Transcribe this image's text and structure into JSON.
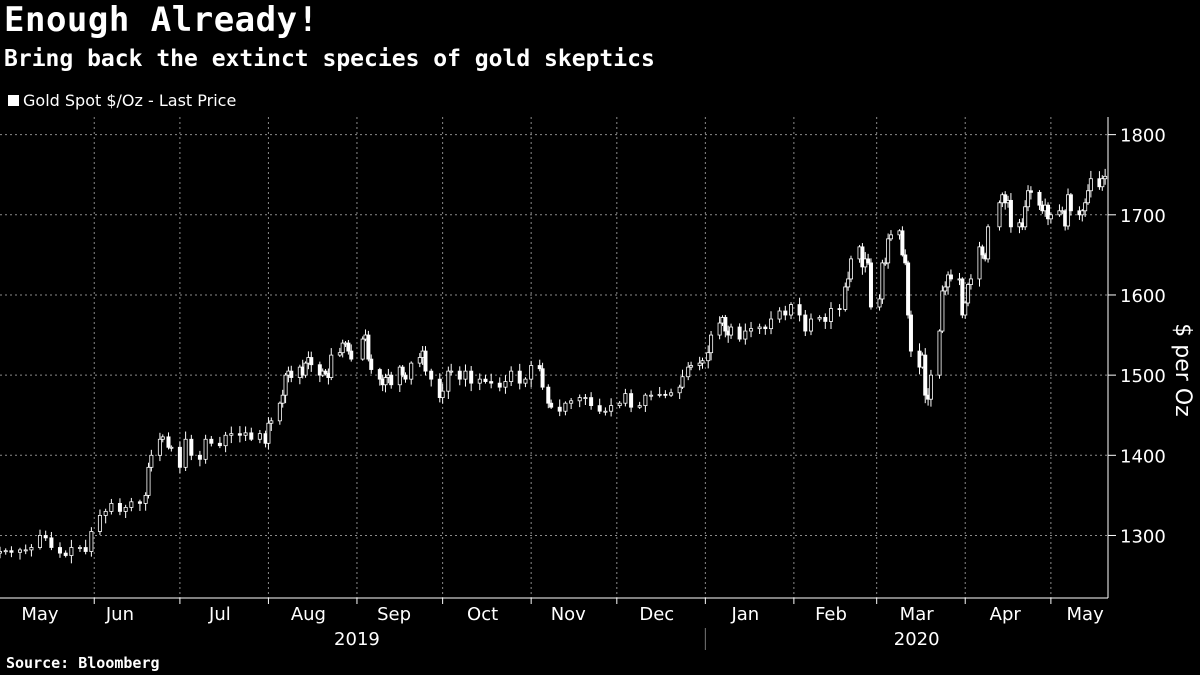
{
  "header": {
    "title": "Enough Already!",
    "subtitle": "Bring back the extinct species of gold skeptics"
  },
  "footer": {
    "source": "Source: Bloomberg"
  },
  "colors": {
    "background": "#000000",
    "series": "#ffffff",
    "grid": "#888888"
  },
  "chart_data": {
    "type": "candlestick",
    "series": [
      {
        "name": "Gold Spot $/Oz - Last Price"
      }
    ],
    "ylabel": "$ per Oz",
    "ylim": [
      1222,
      1822
    ],
    "yticks": [
      1300,
      1400,
      1500,
      1600,
      1700,
      1800
    ],
    "xlim": [
      "2019-04-29",
      "2020-05-21"
    ],
    "month_ticks": [
      {
        "label": "May",
        "date": "2019-05-13"
      },
      {
        "label": "Jun",
        "date": "2019-06-10"
      },
      {
        "label": "Jul",
        "date": "2019-07-15"
      },
      {
        "label": "Aug",
        "date": "2019-08-15"
      },
      {
        "label": "Sep",
        "date": "2019-09-14"
      },
      {
        "label": "Oct",
        "date": "2019-10-15"
      },
      {
        "label": "Nov",
        "date": "2019-11-14"
      },
      {
        "label": "Dec",
        "date": "2019-12-15"
      },
      {
        "label": "Jan",
        "date": "2020-01-15"
      },
      {
        "label": "Feb",
        "date": "2020-02-14"
      },
      {
        "label": "Mar",
        "date": "2020-03-15"
      },
      {
        "label": "Apr",
        "date": "2020-04-15"
      },
      {
        "label": "May",
        "date": "2020-05-13"
      }
    ],
    "month_boundaries": [
      "2019-06-01",
      "2019-07-01",
      "2019-08-01",
      "2019-09-01",
      "2019-10-01",
      "2019-11-01",
      "2019-12-01",
      "2020-01-01",
      "2020-02-01",
      "2020-03-01",
      "2020-04-01",
      "2020-05-01"
    ],
    "years": [
      {
        "label": "2019",
        "date": "2019-09-01"
      },
      {
        "label": "2020",
        "date": "2020-03-15"
      }
    ],
    "year_boundary": "2020-01-01",
    "grid": true,
    "closing_prices": [
      [
        "2019-04-29",
        1280
      ],
      [
        "2019-05-01",
        1281
      ],
      [
        "2019-05-03",
        1279
      ],
      [
        "2019-05-06",
        1282
      ],
      [
        "2019-05-08",
        1282
      ],
      [
        "2019-05-10",
        1285
      ],
      [
        "2019-05-13",
        1300
      ],
      [
        "2019-05-15",
        1297
      ],
      [
        "2019-05-17",
        1285
      ],
      [
        "2019-05-20",
        1278
      ],
      [
        "2019-05-22",
        1275
      ],
      [
        "2019-05-24",
        1285
      ],
      [
        "2019-05-27",
        1285
      ],
      [
        "2019-05-29",
        1280
      ],
      [
        "2019-05-31",
        1305
      ],
      [
        "2019-06-03",
        1325
      ],
      [
        "2019-06-05",
        1330
      ],
      [
        "2019-06-07",
        1340
      ],
      [
        "2019-06-10",
        1330
      ],
      [
        "2019-06-12",
        1335
      ],
      [
        "2019-06-14",
        1342
      ],
      [
        "2019-06-17",
        1340
      ],
      [
        "2019-06-19",
        1350
      ],
      [
        "2019-06-20",
        1385
      ],
      [
        "2019-06-21",
        1400
      ],
      [
        "2019-06-24",
        1420
      ],
      [
        "2019-06-25",
        1423
      ],
      [
        "2019-06-27",
        1410
      ],
      [
        "2019-06-28",
        1410
      ],
      [
        "2019-07-01",
        1385
      ],
      [
        "2019-07-03",
        1420
      ],
      [
        "2019-07-05",
        1400
      ],
      [
        "2019-07-08",
        1395
      ],
      [
        "2019-07-10",
        1420
      ],
      [
        "2019-07-12",
        1415
      ],
      [
        "2019-07-15",
        1412
      ],
      [
        "2019-07-17",
        1425
      ],
      [
        "2019-07-19",
        1427
      ],
      [
        "2019-07-22",
        1425
      ],
      [
        "2019-07-24",
        1428
      ],
      [
        "2019-07-26",
        1420
      ],
      [
        "2019-07-29",
        1427
      ],
      [
        "2019-07-31",
        1415
      ],
      [
        "2019-08-01",
        1440
      ],
      [
        "2019-08-02",
        1443
      ],
      [
        "2019-08-05",
        1465
      ],
      [
        "2019-08-06",
        1475
      ],
      [
        "2019-08-07",
        1500
      ],
      [
        "2019-08-08",
        1505
      ],
      [
        "2019-08-09",
        1497
      ],
      [
        "2019-08-12",
        1510
      ],
      [
        "2019-08-13",
        1500
      ],
      [
        "2019-08-14",
        1515
      ],
      [
        "2019-08-15",
        1522
      ],
      [
        "2019-08-16",
        1513
      ],
      [
        "2019-08-19",
        1500
      ],
      [
        "2019-08-20",
        1505
      ],
      [
        "2019-08-21",
        1502
      ],
      [
        "2019-08-22",
        1497
      ],
      [
        "2019-08-23",
        1525
      ],
      [
        "2019-08-26",
        1528
      ],
      [
        "2019-08-27",
        1540
      ],
      [
        "2019-08-28",
        1540
      ],
      [
        "2019-08-29",
        1530
      ],
      [
        "2019-08-30",
        1520
      ],
      [
        "2019-09-03",
        1545
      ],
      [
        "2019-09-04",
        1550
      ],
      [
        "2019-09-05",
        1520
      ],
      [
        "2019-09-06",
        1507
      ],
      [
        "2019-09-09",
        1495
      ],
      [
        "2019-09-10",
        1488
      ],
      [
        "2019-09-11",
        1497
      ],
      [
        "2019-09-12",
        1500
      ],
      [
        "2019-09-13",
        1488
      ],
      [
        "2019-09-16",
        1510
      ],
      [
        "2019-09-17",
        1500
      ],
      [
        "2019-09-18",
        1495
      ],
      [
        "2019-09-20",
        1515
      ],
      [
        "2019-09-23",
        1522
      ],
      [
        "2019-09-24",
        1530
      ],
      [
        "2019-09-25",
        1505
      ],
      [
        "2019-09-27",
        1495
      ],
      [
        "2019-09-30",
        1472
      ],
      [
        "2019-10-01",
        1480
      ],
      [
        "2019-10-03",
        1505
      ],
      [
        "2019-10-04",
        1505
      ],
      [
        "2019-10-07",
        1495
      ],
      [
        "2019-10-09",
        1505
      ],
      [
        "2019-10-11",
        1490
      ],
      [
        "2019-10-14",
        1495
      ],
      [
        "2019-10-16",
        1492
      ],
      [
        "2019-10-18",
        1490
      ],
      [
        "2019-10-21",
        1485
      ],
      [
        "2019-10-23",
        1492
      ],
      [
        "2019-10-25",
        1505
      ],
      [
        "2019-10-28",
        1490
      ],
      [
        "2019-10-30",
        1495
      ],
      [
        "2019-11-01",
        1512
      ],
      [
        "2019-11-04",
        1508
      ],
      [
        "2019-11-05",
        1485
      ],
      [
        "2019-11-07",
        1465
      ],
      [
        "2019-11-08",
        1460
      ],
      [
        "2019-11-11",
        1455
      ],
      [
        "2019-11-13",
        1465
      ],
      [
        "2019-11-15",
        1468
      ],
      [
        "2019-11-18",
        1472
      ],
      [
        "2019-11-20",
        1472
      ],
      [
        "2019-11-22",
        1462
      ],
      [
        "2019-11-25",
        1455
      ],
      [
        "2019-11-27",
        1455
      ],
      [
        "2019-11-29",
        1462
      ],
      [
        "2019-12-02",
        1465
      ],
      [
        "2019-12-04",
        1477
      ],
      [
        "2019-12-06",
        1460
      ],
      [
        "2019-12-09",
        1462
      ],
      [
        "2019-12-11",
        1475
      ],
      [
        "2019-12-13",
        1475
      ],
      [
        "2019-12-16",
        1476
      ],
      [
        "2019-12-18",
        1475
      ],
      [
        "2019-12-20",
        1478
      ],
      [
        "2019-12-23",
        1485
      ],
      [
        "2019-12-24",
        1498
      ],
      [
        "2019-12-26",
        1510
      ],
      [
        "2019-12-27",
        1512
      ],
      [
        "2019-12-30",
        1515
      ],
      [
        "2019-12-31",
        1518
      ],
      [
        "2020-01-02",
        1528
      ],
      [
        "2020-01-03",
        1550
      ],
      [
        "2020-01-06",
        1565
      ],
      [
        "2020-01-07",
        1572
      ],
      [
        "2020-01-08",
        1555
      ],
      [
        "2020-01-09",
        1550
      ],
      [
        "2020-01-10",
        1560
      ],
      [
        "2020-01-13",
        1545
      ],
      [
        "2020-01-15",
        1555
      ],
      [
        "2020-01-17",
        1558
      ],
      [
        "2020-01-20",
        1560
      ],
      [
        "2020-01-22",
        1558
      ],
      [
        "2020-01-24",
        1570
      ],
      [
        "2020-01-27",
        1580
      ],
      [
        "2020-01-29",
        1575
      ],
      [
        "2020-01-31",
        1588
      ],
      [
        "2020-02-03",
        1575
      ],
      [
        "2020-02-05",
        1555
      ],
      [
        "2020-02-07",
        1570
      ],
      [
        "2020-02-10",
        1572
      ],
      [
        "2020-02-12",
        1567
      ],
      [
        "2020-02-14",
        1583
      ],
      [
        "2020-02-17",
        1582
      ],
      [
        "2020-02-19",
        1610
      ],
      [
        "2020-02-20",
        1620
      ],
      [
        "2020-02-21",
        1645
      ],
      [
        "2020-02-24",
        1660
      ],
      [
        "2020-02-25",
        1635
      ],
      [
        "2020-02-26",
        1645
      ],
      [
        "2020-02-27",
        1640
      ],
      [
        "2020-02-28",
        1585
      ],
      [
        "2020-03-02",
        1595
      ],
      [
        "2020-03-03",
        1640
      ],
      [
        "2020-03-04",
        1640
      ],
      [
        "2020-03-05",
        1670
      ],
      [
        "2020-03-06",
        1675
      ],
      [
        "2020-03-09",
        1680
      ],
      [
        "2020-03-10",
        1650
      ],
      [
        "2020-03-11",
        1640
      ],
      [
        "2020-03-12",
        1575
      ],
      [
        "2020-03-13",
        1530
      ],
      [
        "2020-03-16",
        1510
      ],
      [
        "2020-03-17",
        1525
      ],
      [
        "2020-03-18",
        1475
      ],
      [
        "2020-03-19",
        1470
      ],
      [
        "2020-03-20",
        1500
      ],
      [
        "2020-03-23",
        1555
      ],
      [
        "2020-03-24",
        1605
      ],
      [
        "2020-03-25",
        1610
      ],
      [
        "2020-03-26",
        1625
      ],
      [
        "2020-03-27",
        1620
      ],
      [
        "2020-03-30",
        1620
      ],
      [
        "2020-03-31",
        1575
      ],
      [
        "2020-04-01",
        1590
      ],
      [
        "2020-04-02",
        1613
      ],
      [
        "2020-04-03",
        1620
      ],
      [
        "2020-04-06",
        1660
      ],
      [
        "2020-04-07",
        1650
      ],
      [
        "2020-04-08",
        1645
      ],
      [
        "2020-04-09",
        1685
      ],
      [
        "2020-04-13",
        1715
      ],
      [
        "2020-04-14",
        1725
      ],
      [
        "2020-04-15",
        1715
      ],
      [
        "2020-04-16",
        1718
      ],
      [
        "2020-04-17",
        1685
      ],
      [
        "2020-04-20",
        1690
      ],
      [
        "2020-04-21",
        1685
      ],
      [
        "2020-04-22",
        1710
      ],
      [
        "2020-04-23",
        1730
      ],
      [
        "2020-04-24",
        1728
      ],
      [
        "2020-04-27",
        1712
      ],
      [
        "2020-04-28",
        1705
      ],
      [
        "2020-04-29",
        1712
      ],
      [
        "2020-04-30",
        1695
      ],
      [
        "2020-05-01",
        1700
      ],
      [
        "2020-05-04",
        1705
      ],
      [
        "2020-05-05",
        1705
      ],
      [
        "2020-05-06",
        1686
      ],
      [
        "2020-05-07",
        1725
      ],
      [
        "2020-05-08",
        1705
      ],
      [
        "2020-05-11",
        1700
      ],
      [
        "2020-05-12",
        1705
      ],
      [
        "2020-05-13",
        1715
      ],
      [
        "2020-05-14",
        1730
      ],
      [
        "2020-05-15",
        1745
      ],
      [
        "2020-05-18",
        1735
      ],
      [
        "2020-05-19",
        1745
      ],
      [
        "2020-05-20",
        1748
      ]
    ]
  }
}
